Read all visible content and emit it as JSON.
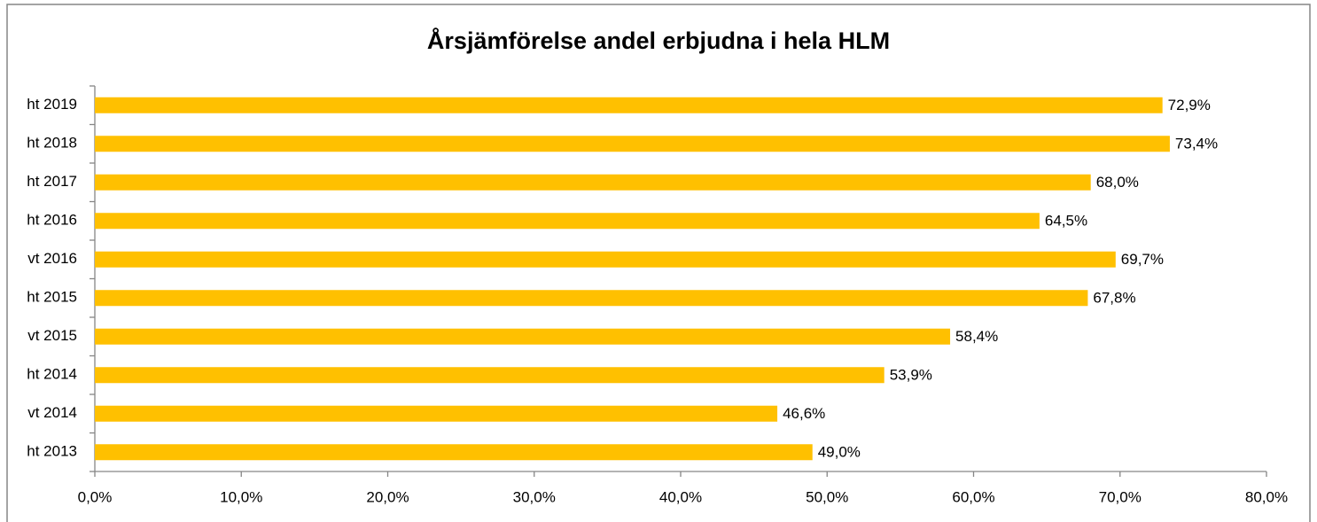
{
  "chart_data": {
    "type": "bar",
    "orientation": "horizontal",
    "title": "Årsjämförelse andel erbjudna i hela HLM",
    "categories": [
      "ht 2019",
      "ht 2018",
      "ht 2017",
      "ht 2016",
      "vt 2016",
      "ht 2015",
      "vt 2015",
      "ht 2014",
      "vt 2014",
      "ht 2013"
    ],
    "values": [
      72.9,
      73.4,
      68.0,
      64.5,
      69.7,
      67.8,
      58.4,
      53.9,
      46.6,
      49.0
    ],
    "value_labels": [
      "72,9%",
      "73,4%",
      "68,0%",
      "64,5%",
      "69,7%",
      "67,8%",
      "58,4%",
      "53,9%",
      "46,6%",
      "49,0%"
    ],
    "color": "#ffc000",
    "xlim": [
      0,
      80
    ],
    "xticks": [
      {
        "value": 0,
        "label": "0,0%"
      },
      {
        "value": 10,
        "label": "10,0%"
      },
      {
        "value": 20,
        "label": "20,0%"
      },
      {
        "value": 30,
        "label": "30,0%"
      },
      {
        "value": 40,
        "label": "40,0%"
      },
      {
        "value": 50,
        "label": "50,0%"
      },
      {
        "value": 60,
        "label": "60,0%"
      },
      {
        "value": 70,
        "label": "70,0%"
      },
      {
        "value": 80,
        "label": "80,0%"
      }
    ],
    "grid": false
  }
}
